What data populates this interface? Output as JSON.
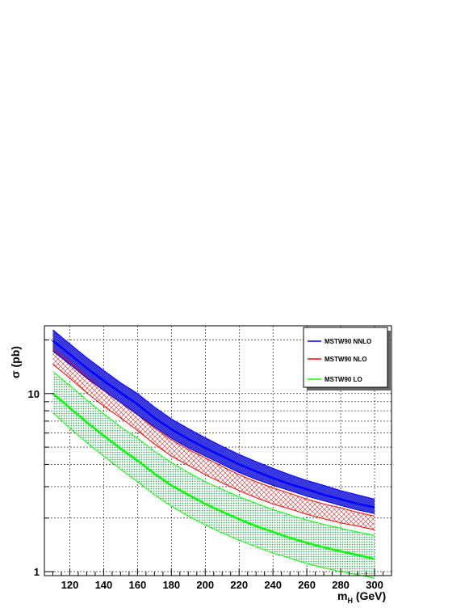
{
  "chart_data": {
    "type": "line",
    "title": "",
    "xlabel": "m",
    "xlabel_sub": "H",
    "xlabel_suffix": " (GeV)",
    "ylabel": "σ (pb)",
    "xlim": [
      105,
      310
    ],
    "ylim": [
      0.95,
      24
    ],
    "yscale": "log",
    "grid": true,
    "legend_position": "top-right",
    "x_ticks": [
      120,
      140,
      160,
      180,
      200,
      220,
      240,
      260,
      280,
      300
    ],
    "x_tick_labels": [
      "120",
      "140",
      "160",
      "180",
      "200",
      "220",
      "240",
      "260",
      "280",
      "300"
    ],
    "y_ticks": [
      1,
      10
    ],
    "y_tick_labels": [
      "1",
      "10"
    ],
    "x": [
      110,
      120,
      130,
      140,
      150,
      160,
      170,
      180,
      190,
      200,
      210,
      220,
      230,
      240,
      250,
      260,
      270,
      280,
      290,
      300
    ],
    "series": [
      {
        "name": "MSTW90 NNLO",
        "color": "#0000ff",
        "fill": "#2a2ad0",
        "central": [
          19.8,
          16.6,
          13.9,
          11.8,
          10.1,
          8.7,
          7.3,
          6.3,
          5.55,
          4.95,
          4.45,
          4.0,
          3.65,
          3.35,
          3.1,
          2.9,
          2.7,
          2.55,
          2.4,
          2.3
        ],
        "upper": [
          22.8,
          19.0,
          15.9,
          13.5,
          11.5,
          10.0,
          8.4,
          7.2,
          6.35,
          5.65,
          5.05,
          4.55,
          4.15,
          3.8,
          3.5,
          3.25,
          3.05,
          2.85,
          2.7,
          2.55
        ],
        "lower": [
          17.3,
          14.6,
          12.2,
          10.4,
          8.9,
          7.6,
          6.5,
          5.6,
          4.95,
          4.45,
          4.0,
          3.6,
          3.3,
          3.05,
          2.85,
          2.65,
          2.5,
          2.35,
          2.22,
          2.12
        ]
      },
      {
        "name": "MSTW90 NLO",
        "color": "#ff0000",
        "fill": "#e05050",
        "central": [
          17.8,
          15.0,
          12.4,
          10.4,
          8.9,
          7.6,
          6.4,
          5.5,
          4.85,
          4.35,
          3.9,
          3.5,
          3.2,
          2.95,
          2.75,
          2.55,
          2.4,
          2.28,
          2.15,
          2.05
        ],
        "upper": [
          17.8,
          15.0,
          12.4,
          10.4,
          8.9,
          7.6,
          6.4,
          5.5,
          4.85,
          4.35,
          3.9,
          3.5,
          3.2,
          2.95,
          2.75,
          2.55,
          2.4,
          2.28,
          2.15,
          2.05
        ],
        "lower": [
          14.6,
          12.2,
          10.1,
          8.5,
          7.3,
          6.2,
          5.2,
          4.45,
          3.95,
          3.5,
          3.15,
          2.85,
          2.6,
          2.4,
          2.25,
          2.1,
          1.98,
          1.88,
          1.8,
          1.72
        ]
      },
      {
        "name": "MSTW90 LO",
        "color": "#00ff00",
        "fill": "#40c060",
        "central": [
          10.0,
          8.3,
          6.9,
          5.8,
          4.9,
          4.2,
          3.55,
          3.05,
          2.7,
          2.4,
          2.17,
          1.97,
          1.8,
          1.67,
          1.55,
          1.45,
          1.37,
          1.3,
          1.24,
          1.18
        ],
        "upper": [
          13.3,
          11.1,
          9.2,
          7.7,
          6.5,
          5.6,
          4.75,
          4.1,
          3.6,
          3.2,
          2.9,
          2.63,
          2.42,
          2.23,
          2.08,
          1.95,
          1.84,
          1.75,
          1.67,
          1.6
        ],
        "lower": [
          7.8,
          6.4,
          5.3,
          4.45,
          3.75,
          3.2,
          2.7,
          2.33,
          2.05,
          1.83,
          1.65,
          1.5,
          1.38,
          1.27,
          1.19,
          1.11,
          1.05,
          1.0,
          0.96,
          0.92
        ]
      }
    ]
  }
}
